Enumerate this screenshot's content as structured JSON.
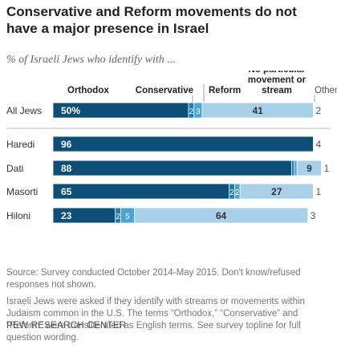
{
  "header": {
    "title": "Conservative and Reform movements do not have a major presence in Israel",
    "subtitle": "% of Israeli Jews who identify with ..."
  },
  "chart_data": {
    "type": "bar",
    "orientation": "horizontal",
    "stacked": true,
    "title": "Conservative and Reform movements do not have a major presence in Israel",
    "subtitle": "% of Israeli Jews who identify with ...",
    "categories": [
      "All Jews",
      "Haredi",
      "Dati",
      "Masorti",
      "Hiloni"
    ],
    "series": [
      {
        "name": "Orthodox",
        "values": [
          50,
          96,
          88,
          65,
          23
        ],
        "labels": [
          "50%",
          "96",
          "88",
          "65",
          "23"
        ],
        "color": "#0d4f76"
      },
      {
        "name": "Conservative",
        "values": [
          2,
          0,
          1,
          2,
          2
        ],
        "labels": [
          "2",
          "",
          "",
          "2",
          "2"
        ],
        "color": "#1a7db6"
      },
      {
        "name": "Reform",
        "values": [
          3,
          0,
          1,
          2,
          5
        ],
        "labels": [
          "3",
          "",
          "",
          "2",
          "5"
        ],
        "color": "#4aa3d3"
      },
      {
        "name": "No particular movement or stream",
        "values": [
          41,
          0,
          9,
          27,
          64
        ],
        "labels": [
          "41",
          "",
          "9",
          "27",
          "64"
        ],
        "color": "#a8d0e8"
      },
      {
        "name": "Other",
        "values": [
          2,
          4,
          1,
          1,
          3
        ],
        "labels": [
          "2",
          "4",
          "1",
          "1",
          "3"
        ],
        "color": "#ffffff"
      }
    ],
    "xlim": [
      0,
      100
    ],
    "grid": false,
    "legend": "top"
  },
  "footer": {
    "source": "Source: Survey conducted October 2014-May 2015. Don't know/refused responses not shown.",
    "note": "Israeli Jews were asked if they identify with streams or movements within Judaism common in the U.S. The terms “Orthodox,” “Conservative” and “Reform” were transliterated as English terms. See survey topline for full question wording.",
    "credit": "PEW RESEARCH CENTER"
  }
}
